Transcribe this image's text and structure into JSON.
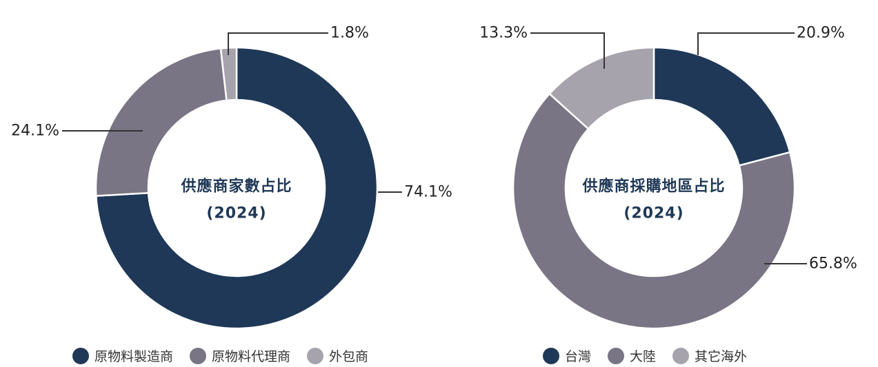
{
  "colors": {
    "navy": "#1f3857",
    "gray": "#7a7585",
    "light_gray": "#a6a3ad",
    "label_line": "#333333",
    "center_text": "#1f3857"
  },
  "chart_data": [
    {
      "type": "pie",
      "donut": true,
      "title": "供應商家數占比",
      "subtitle": "(2024)",
      "series": [
        {
          "name": "原物料製造商",
          "value": 74.1,
          "label": "74.1%",
          "color": "#1f3857"
        },
        {
          "name": "原物料代理商",
          "value": 24.1,
          "label": "24.1%",
          "color": "#7a7585"
        },
        {
          "name": "外包商",
          "value": 1.8,
          "label": "1.8%",
          "color": "#a6a3ad"
        }
      ],
      "legend_position": "bottom"
    },
    {
      "type": "pie",
      "donut": true,
      "title": "供應商採購地區占比",
      "subtitle": "(2024)",
      "series": [
        {
          "name": "台灣",
          "value": 20.9,
          "label": "20.9%",
          "color": "#1f3857"
        },
        {
          "name": "大陸",
          "value": 65.8,
          "label": "65.8%",
          "color": "#7a7585"
        },
        {
          "name": "其它海外",
          "value": 13.3,
          "label": "13.3%",
          "color": "#a6a3ad"
        }
      ],
      "legend_position": "bottom"
    }
  ]
}
